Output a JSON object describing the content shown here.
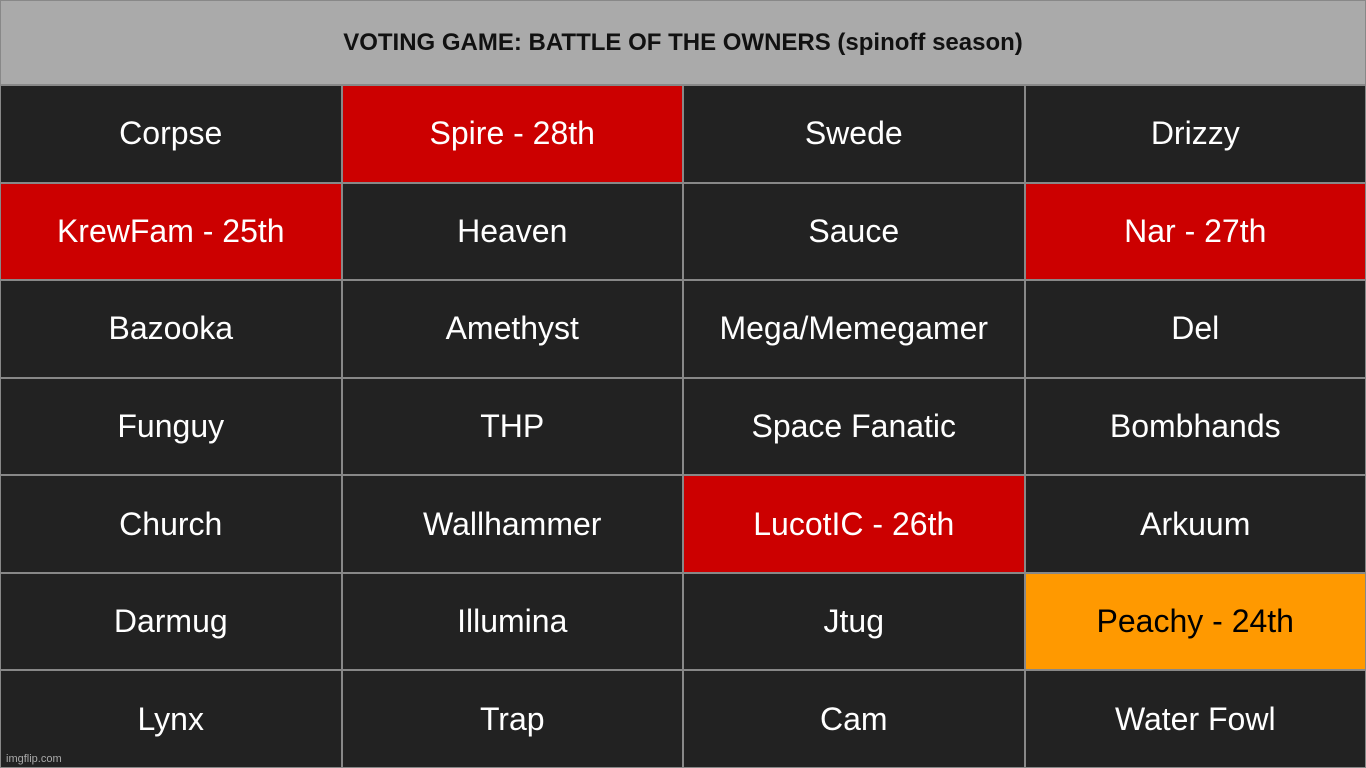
{
  "header": {
    "title": "VOTING GAME: BATTLE OF THE OWNERS (spinoff season)"
  },
  "table": {
    "rows": [
      [
        {
          "text": "Corpse",
          "color": "#222222",
          "text_color": "#ffffff"
        },
        {
          "text": "Spire - 28th",
          "color": "#cc0000",
          "text_color": "#ffffff"
        },
        {
          "text": "Swede",
          "color": "#222222",
          "text_color": "#ffffff"
        },
        {
          "text": "Drizzy",
          "color": "#222222",
          "text_color": "#ffffff"
        }
      ],
      [
        {
          "text": "KrewFam - 25th",
          "color": "#cc0000",
          "text_color": "#ffffff"
        },
        {
          "text": "Heaven",
          "color": "#222222",
          "text_color": "#ffffff"
        },
        {
          "text": "Sauce",
          "color": "#222222",
          "text_color": "#ffffff"
        },
        {
          "text": "Nar - 27th",
          "color": "#cc0000",
          "text_color": "#ffffff"
        }
      ],
      [
        {
          "text": "Bazooka",
          "color": "#222222",
          "text_color": "#ffffff"
        },
        {
          "text": "Amethyst",
          "color": "#222222",
          "text_color": "#ffffff"
        },
        {
          "text": "Mega/Memegamer",
          "color": "#222222",
          "text_color": "#ffffff"
        },
        {
          "text": "Del",
          "color": "#222222",
          "text_color": "#ffffff"
        }
      ],
      [
        {
          "text": "Funguy",
          "color": "#222222",
          "text_color": "#ffffff"
        },
        {
          "text": "THP",
          "color": "#222222",
          "text_color": "#ffffff"
        },
        {
          "text": "Space Fanatic",
          "color": "#222222",
          "text_color": "#ffffff"
        },
        {
          "text": "Bombhands",
          "color": "#222222",
          "text_color": "#ffffff"
        }
      ],
      [
        {
          "text": "Church",
          "color": "#222222",
          "text_color": "#ffffff"
        },
        {
          "text": "Wallhammer",
          "color": "#222222",
          "text_color": "#ffffff"
        },
        {
          "text": "LucotIC - 26th",
          "color": "#cc0000",
          "text_color": "#ffffff"
        },
        {
          "text": "Arkuum",
          "color": "#222222",
          "text_color": "#ffffff"
        }
      ],
      [
        {
          "text": "Darmug",
          "color": "#222222",
          "text_color": "#ffffff"
        },
        {
          "text": "Illumina",
          "color": "#222222",
          "text_color": "#ffffff"
        },
        {
          "text": "Jtug",
          "color": "#222222",
          "text_color": "#ffffff"
        },
        {
          "text": "Peachy - 24th",
          "color": "#ff9900",
          "text_color": "#000000"
        }
      ],
      [
        {
          "text": "Lynx",
          "color": "#222222",
          "text_color": "#ffffff"
        },
        {
          "text": "Trap",
          "color": "#222222",
          "text_color": "#ffffff"
        },
        {
          "text": "Cam",
          "color": "#222222",
          "text_color": "#ffffff"
        },
        {
          "text": "Water Fowl",
          "color": "#222222",
          "text_color": "#ffffff"
        }
      ]
    ]
  },
  "watermark": "imgflip.com"
}
